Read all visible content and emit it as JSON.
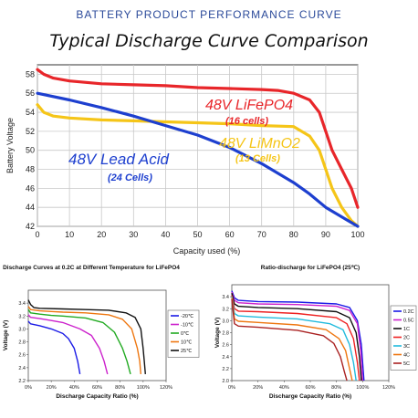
{
  "header": "BATTERY PRODUCT PERFORMANCE CURVE",
  "title": "Typical Discharge Curve Comparison",
  "chart_data": [
    {
      "type": "line",
      "title": "Typical Discharge Curve Comparison",
      "xlabel": "Capacity used (%)",
      "ylabel": "Battery Voltage",
      "xlim": [
        0,
        100
      ],
      "ylim": [
        42,
        59
      ],
      "xticks": [
        0,
        10,
        20,
        30,
        40,
        50,
        60,
        70,
        80,
        90,
        100
      ],
      "yticks": [
        42,
        44,
        46,
        48,
        50,
        52,
        54,
        56,
        58
      ],
      "grid": true,
      "series": [
        {
          "name": "48V LiFePO4",
          "sublabel": "(16 cells)",
          "color": "#e8262a",
          "points": [
            [
              0,
              58.5
            ],
            [
              2,
              58
            ],
            [
              5,
              57.6
            ],
            [
              10,
              57.3
            ],
            [
              20,
              57
            ],
            [
              30,
              56.9
            ],
            [
              40,
              56.8
            ],
            [
              50,
              56.6
            ],
            [
              60,
              56.5
            ],
            [
              70,
              56.4
            ],
            [
              75,
              56.3
            ],
            [
              80,
              56
            ],
            [
              85,
              55.3
            ],
            [
              88,
              54
            ],
            [
              90,
              52
            ],
            [
              92,
              50
            ],
            [
              95,
              48
            ],
            [
              98,
              46
            ],
            [
              100,
              44
            ]
          ]
        },
        {
          "name": "48V LiMnO2",
          "sublabel": "(13 Cells)",
          "color": "#f5c518",
          "points": [
            [
              0,
              54.8
            ],
            [
              2,
              54
            ],
            [
              5,
              53.6
            ],
            [
              10,
              53.4
            ],
            [
              20,
              53.2
            ],
            [
              30,
              53.1
            ],
            [
              40,
              53
            ],
            [
              50,
              52.9
            ],
            [
              60,
              52.8
            ],
            [
              70,
              52.6
            ],
            [
              80,
              52.5
            ],
            [
              85,
              51.5
            ],
            [
              88,
              50
            ],
            [
              90,
              48
            ],
            [
              92,
              46
            ],
            [
              95,
              44
            ],
            [
              98,
              42.6
            ],
            [
              100,
              42
            ]
          ]
        },
        {
          "name": "48V Lead Acid",
          "sublabel": "(24 Cells)",
          "color": "#1d3fcf",
          "points": [
            [
              0,
              56
            ],
            [
              10,
              55.3
            ],
            [
              20,
              54.5
            ],
            [
              30,
              53.6
            ],
            [
              40,
              52.6
            ],
            [
              50,
              51.6
            ],
            [
              60,
              50.3
            ],
            [
              70,
              48.6
            ],
            [
              80,
              46.6
            ],
            [
              85,
              45.4
            ],
            [
              90,
              44
            ],
            [
              95,
              43
            ],
            [
              100,
              42
            ]
          ]
        }
      ]
    },
    {
      "type": "line",
      "title": "Discharge Curves at 0.2C at Different Temperature for LiFePO4",
      "xlabel": "Discharge Capacity Ratio (%)",
      "ylabel": "Voltage (V)",
      "xlim": [
        0,
        120
      ],
      "ylim": [
        2.2,
        3.6
      ],
      "xticks": [
        "0%",
        "20%",
        "40%",
        "60%",
        "80%",
        "100%",
        "120%"
      ],
      "yticks": [
        2.2,
        2.4,
        2.6,
        2.8,
        3.0,
        3.2,
        3.4
      ],
      "series": [
        {
          "name": "-20℃",
          "color": "#1a1ae6",
          "points": [
            [
              0,
              3.12
            ],
            [
              2,
              3.08
            ],
            [
              10,
              3.05
            ],
            [
              20,
              3.0
            ],
            [
              30,
              2.93
            ],
            [
              35,
              2.85
            ],
            [
              40,
              2.7
            ],
            [
              43,
              2.5
            ],
            [
              45,
              2.3
            ]
          ]
        },
        {
          "name": "-10℃",
          "color": "#cc22cc",
          "points": [
            [
              0,
              3.22
            ],
            [
              2,
              3.18
            ],
            [
              10,
              3.16
            ],
            [
              20,
              3.13
            ],
            [
              30,
              3.1
            ],
            [
              45,
              3.0
            ],
            [
              55,
              2.9
            ],
            [
              62,
              2.7
            ],
            [
              66,
              2.5
            ],
            [
              69,
              2.3
            ]
          ]
        },
        {
          "name": "0℃",
          "color": "#22aa22",
          "points": [
            [
              0,
              3.3
            ],
            [
              2,
              3.25
            ],
            [
              10,
              3.23
            ],
            [
              20,
              3.21
            ],
            [
              30,
              3.2
            ],
            [
              50,
              3.17
            ],
            [
              65,
              3.1
            ],
            [
              75,
              2.95
            ],
            [
              82,
              2.7
            ],
            [
              86,
              2.5
            ],
            [
              89,
              2.3
            ]
          ]
        },
        {
          "name": "10℃",
          "color": "#ee7711",
          "points": [
            [
              0,
              3.35
            ],
            [
              2,
              3.3
            ],
            [
              10,
              3.28
            ],
            [
              20,
              3.27
            ],
            [
              30,
              3.26
            ],
            [
              50,
              3.25
            ],
            [
              70,
              3.22
            ],
            [
              82,
              3.15
            ],
            [
              90,
              3.0
            ],
            [
              95,
              2.7
            ],
            [
              97,
              2.5
            ],
            [
              98,
              2.3
            ]
          ]
        },
        {
          "name": "25℃",
          "color": "#111111",
          "points": [
            [
              0,
              3.45
            ],
            [
              2,
              3.38
            ],
            [
              5,
              3.33
            ],
            [
              10,
              3.32
            ],
            [
              30,
              3.31
            ],
            [
              50,
              3.3
            ],
            [
              70,
              3.29
            ],
            [
              85,
              3.25
            ],
            [
              93,
              3.18
            ],
            [
              98,
              3.0
            ],
            [
              100,
              2.7
            ],
            [
              101,
              2.5
            ],
            [
              102,
              2.3
            ]
          ]
        }
      ]
    },
    {
      "type": "line",
      "title": "Ratio-discharge for LiFePO4 (25℃)",
      "xlabel": "Discharge Capacity Ratio (%)",
      "ylabel": "Voltage (V)",
      "xlim": [
        0,
        120
      ],
      "ylim": [
        2.0,
        3.6
      ],
      "xticks": [
        "0%",
        "20%",
        "40%",
        "60%",
        "80%",
        "100%",
        "120%"
      ],
      "yticks": [
        2.0,
        2.2,
        2.4,
        2.6,
        2.8,
        3.0,
        3.2,
        3.4
      ],
      "series": [
        {
          "name": "0.2C",
          "color": "#1a1ae6",
          "points": [
            [
              0,
              3.5
            ],
            [
              2,
              3.38
            ],
            [
              5,
              3.34
            ],
            [
              20,
              3.32
            ],
            [
              50,
              3.31
            ],
            [
              80,
              3.28
            ],
            [
              90,
              3.22
            ],
            [
              96,
              3.0
            ],
            [
              99,
              2.6
            ],
            [
              101,
              2.0
            ]
          ]
        },
        {
          "name": "0.5C",
          "color": "#cc22cc",
          "points": [
            [
              0,
              3.48
            ],
            [
              2,
              3.34
            ],
            [
              5,
              3.3
            ],
            [
              20,
              3.28
            ],
            [
              50,
              3.27
            ],
            [
              80,
              3.24
            ],
            [
              90,
              3.17
            ],
            [
              96,
              2.95
            ],
            [
              98.5,
              2.5
            ],
            [
              100,
              2.0
            ]
          ]
        },
        {
          "name": "1C",
          "color": "#111111",
          "points": [
            [
              0,
              3.46
            ],
            [
              2,
              3.28
            ],
            [
              5,
              3.24
            ],
            [
              20,
              3.22
            ],
            [
              50,
              3.2
            ],
            [
              80,
              3.15
            ],
            [
              90,
              3.05
            ],
            [
              95,
              2.8
            ],
            [
              97.5,
              2.4
            ],
            [
              99,
              2.0
            ]
          ]
        },
        {
          "name": "2C",
          "color": "#ee2222",
          "points": [
            [
              0,
              3.42
            ],
            [
              2,
              3.2
            ],
            [
              5,
              3.16
            ],
            [
              20,
              3.15
            ],
            [
              50,
              3.12
            ],
            [
              80,
              3.05
            ],
            [
              88,
              2.95
            ],
            [
              93,
              2.7
            ],
            [
              96,
              2.3
            ],
            [
              97.5,
              2.0
            ]
          ]
        },
        {
          "name": "3C",
          "color": "#22bbdd",
          "points": [
            [
              0,
              3.4
            ],
            [
              2,
              3.12
            ],
            [
              5,
              3.08
            ],
            [
              20,
              3.06
            ],
            [
              50,
              3.03
            ],
            [
              75,
              2.95
            ],
            [
              85,
              2.85
            ],
            [
              90,
              2.6
            ],
            [
              93,
              2.3
            ],
            [
              95,
              2.0
            ]
          ]
        },
        {
          "name": "4C",
          "color": "#ee7711",
          "points": [
            [
              0,
              3.38
            ],
            [
              2,
              3.03
            ],
            [
              5,
              2.99
            ],
            [
              20,
              2.97
            ],
            [
              50,
              2.93
            ],
            [
              72,
              2.85
            ],
            [
              82,
              2.7
            ],
            [
              87,
              2.5
            ],
            [
              90,
              2.2
            ],
            [
              92,
              2.0
            ]
          ]
        },
        {
          "name": "5C",
          "color": "#aa2222",
          "points": [
            [
              0,
              3.36
            ],
            [
              2,
              2.95
            ],
            [
              5,
              2.91
            ],
            [
              20,
              2.89
            ],
            [
              50,
              2.84
            ],
            [
              70,
              2.75
            ],
            [
              78,
              2.62
            ],
            [
              83,
              2.4
            ],
            [
              86,
              2.15
            ],
            [
              88,
              2.0
            ]
          ]
        }
      ]
    }
  ]
}
